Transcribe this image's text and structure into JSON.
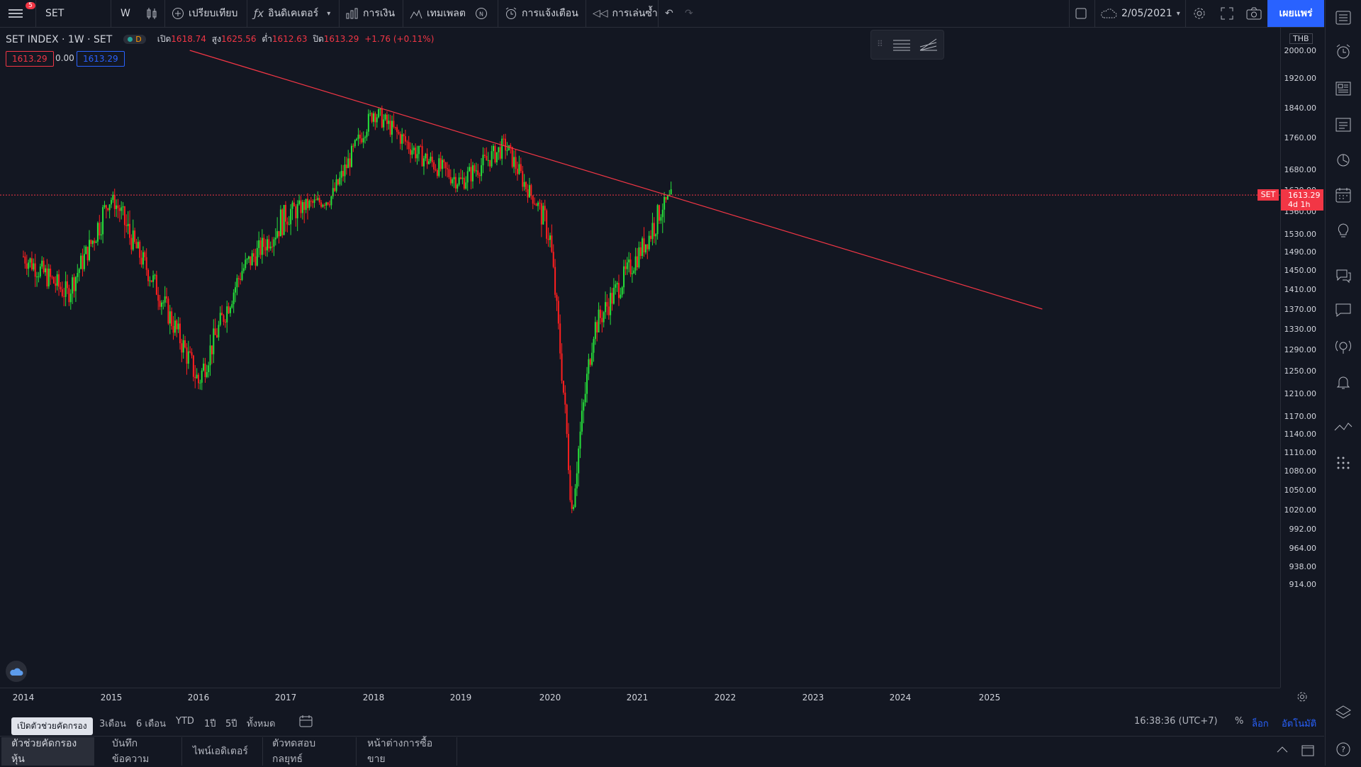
{
  "toolbar": {
    "notification_count": "5",
    "symbol": "SET",
    "interval": "W",
    "compare": "เปรียบเทียบ",
    "indicators": "อินดิเคเตอร์",
    "financials": "การเงิน",
    "templates": "เทมเพลต",
    "alerts": "การแจ้งเตือน",
    "replay": "การเล่นซ้ำ",
    "date": "2/05/2021",
    "publish": "เผยแพร่"
  },
  "legend": {
    "title": "SET INDEX · 1W · SET",
    "status_letter": "D",
    "open_label": "เปิด",
    "open": "1618.74",
    "high_label": "สูง",
    "high": "1625.56",
    "low_label": "ต่ำ",
    "low": "1612.63",
    "close_label": "ปิด",
    "close": "1613.29",
    "change": "+1.76 (+0.11%)",
    "bid": "1613.29",
    "spread": "0.00",
    "ask": "1613.29"
  },
  "price_axis": {
    "currency": "THB",
    "labels": [
      "2000.00",
      "1920.00",
      "1840.00",
      "1760.00",
      "1680.00",
      "1630.00",
      "1560.00",
      "1530.00",
      "1490.00",
      "1450.00",
      "1410.00",
      "1370.00",
      "1330.00",
      "1290.00",
      "1250.00",
      "1210.00",
      "1170.00",
      "1140.00",
      "1110.00",
      "1080.00",
      "1050.00",
      "1020.00",
      "992.00",
      "964.00",
      "938.00",
      "914.00"
    ],
    "current_symbol": "SET",
    "current_price": "1613.29",
    "countdown": "4d 1h"
  },
  "time_axis": [
    "2014",
    "2015",
    "2016",
    "2017",
    "2018",
    "2019",
    "2020",
    "2021",
    "2022",
    "2023",
    "2024",
    "2025"
  ],
  "chart_data": {
    "type": "candlestick",
    "x": [
      "2014",
      "2014.5",
      "2015",
      "2015.5",
      "2016",
      "2016.5",
      "2017",
      "2017.5",
      "2018",
      "2018.5",
      "2019",
      "2019.5",
      "2020",
      "2020.25",
      "2020.5",
      "2021",
      "2021.4"
    ],
    "close": [
      1480,
      1400,
      1600,
      1420,
      1230,
      1450,
      1560,
      1600,
      1830,
      1720,
      1650,
      1740,
      1520,
      1020,
      1330,
      1480,
      1613.29
    ],
    "trendline": {
      "from": {
        "x": "2015.9",
        "y": 2010
      },
      "to": {
        "x": "2025.6",
        "y": 1370
      }
    },
    "last_price": 1613.29
  },
  "ranges": [
    "3เดือน",
    "6 เดือน",
    "YTD",
    "1ปี",
    "5ปี",
    "ทั้งหมด"
  ],
  "clock": "16:38:36 (UTC+7)",
  "scale_opts": {
    "percent": "%",
    "log": "ล็อก",
    "auto": "อัตโนมัติ"
  },
  "tooltip": "เปิดตัวช่วยคัดกรอง",
  "bottom_tabs": [
    "ตัวช่วยคัดกรองหุ้น",
    "บันทึกข้อความ",
    "ไพน์เอดิเตอร์",
    "ตัวทดสอบกลยุทธ์",
    "หน้าต่างการซื้อขาย"
  ]
}
